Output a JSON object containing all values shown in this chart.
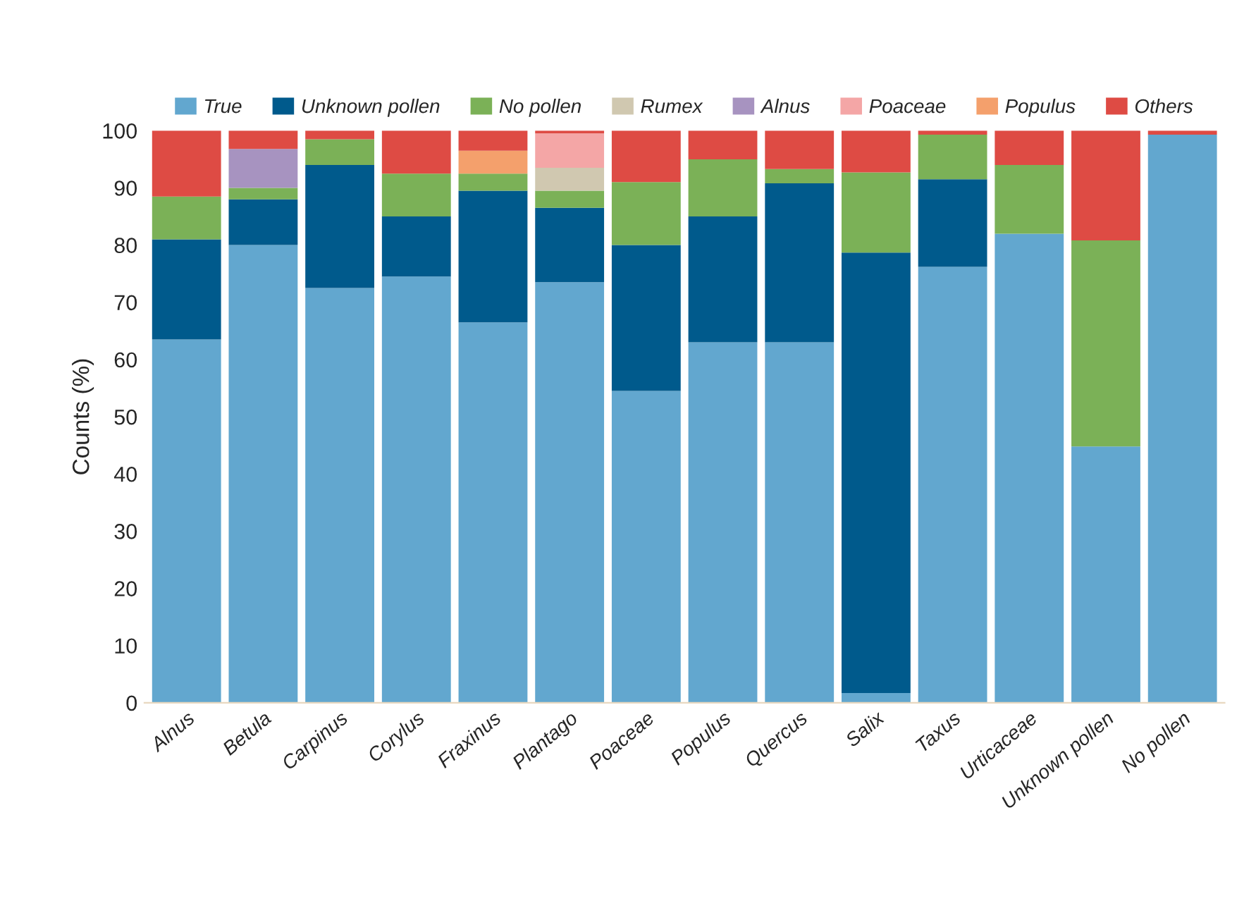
{
  "chart_data": {
    "type": "bar",
    "stacked": true,
    "ylabel": "Counts (%)",
    "categories": [
      "Alnus",
      "Betula",
      "Carpinus",
      "Corylus",
      "Fraxinus",
      "Plantago",
      "Poaceae",
      "Populus",
      "Quercus",
      "Salix",
      "Taxus",
      "Urticaceae",
      "Unknown pollen",
      "No pollen"
    ],
    "series": [
      {
        "name": "True",
        "color": "#62a7cf",
        "values": [
          63.5,
          80,
          72.5,
          74.5,
          66.5,
          73.5,
          54.5,
          63,
          63,
          1.7,
          76.2,
          82,
          44.8,
          99.3
        ]
      },
      {
        "name": "Unknown pollen",
        "color": "#005a8c",
        "values": [
          17.5,
          8,
          21.5,
          10.5,
          23,
          13,
          25.5,
          22,
          27.8,
          77,
          15.3,
          0,
          0,
          0
        ]
      },
      {
        "name": "No pollen",
        "color": "#7bb157",
        "values": [
          7.5,
          2,
          4.5,
          7.5,
          3,
          3,
          11,
          10,
          2.5,
          14,
          7.8,
          12,
          36,
          0
        ]
      },
      {
        "name": "Rumex",
        "color": "#d0c8b0",
        "values": [
          0,
          0,
          0,
          0,
          0,
          4,
          0,
          0,
          0,
          0,
          0,
          0,
          0,
          0
        ]
      },
      {
        "name": "Alnus",
        "color": "#a793c0",
        "values": [
          0,
          6.8,
          0,
          0,
          0,
          0,
          0,
          0,
          0,
          0,
          0,
          0,
          0,
          0
        ]
      },
      {
        "name": "Poaceae",
        "color": "#f4a6a6",
        "values": [
          0,
          0,
          0,
          0,
          0,
          6,
          0,
          0,
          0,
          0,
          0,
          0,
          0,
          0
        ]
      },
      {
        "name": "Populus",
        "color": "#f4a06c",
        "values": [
          0,
          0,
          0,
          0,
          4,
          0,
          0,
          0,
          0,
          0,
          0,
          0,
          0,
          0
        ]
      },
      {
        "name": "Others",
        "color": "#de4b44",
        "values": [
          11.5,
          3.2,
          1.5,
          7.5,
          3.5,
          0.5,
          9,
          5,
          6.7,
          7.3,
          0.7,
          6,
          19.2,
          0.7
        ]
      }
    ],
    "ylim": [
      0,
      100
    ],
    "yticks": [
      0,
      10,
      20,
      30,
      40,
      50,
      60,
      70,
      80,
      90,
      100
    ],
    "grid": false,
    "legend": "top"
  }
}
